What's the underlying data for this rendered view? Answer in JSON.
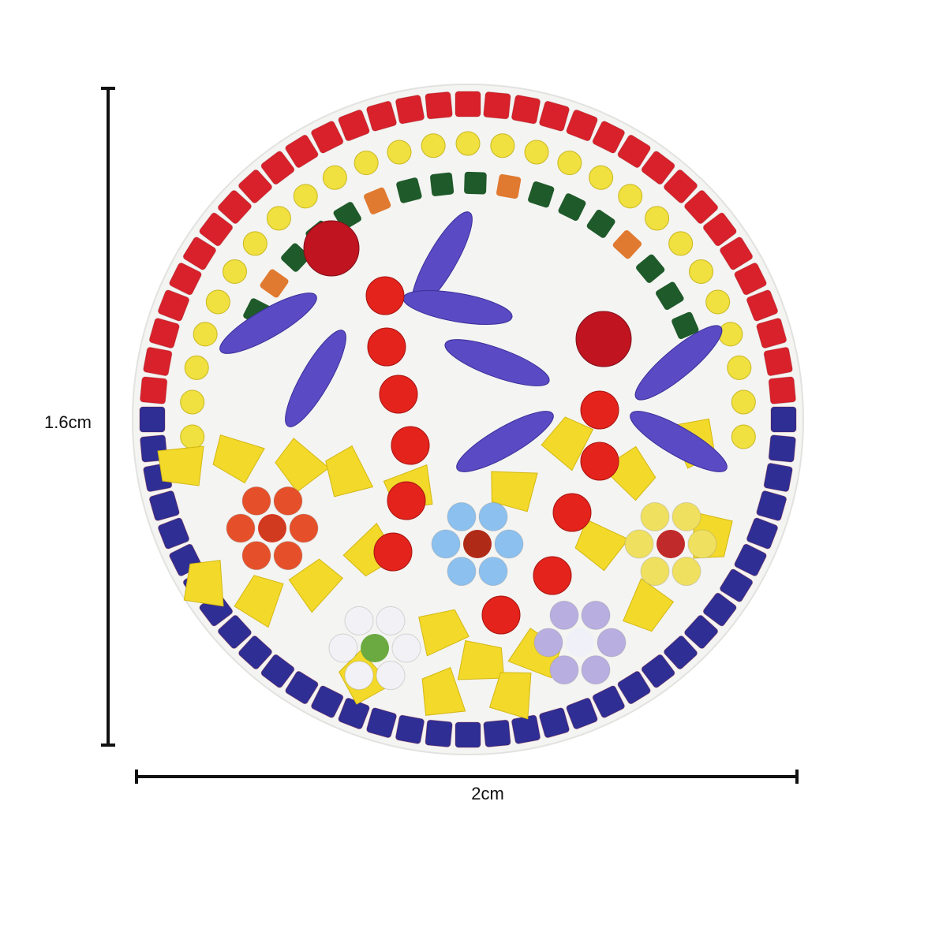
{
  "dimensions": {
    "height_label": "1.6cm",
    "width_label": "2cm"
  }
}
